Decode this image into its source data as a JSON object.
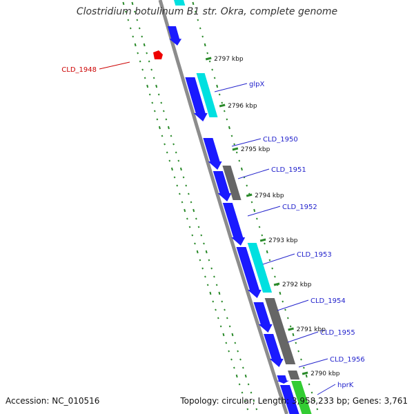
{
  "title": "Clostridium botulinum B1 str. Okra, complete genome",
  "accession": "Accession: NC_010516",
  "summary": "Topology: circular; Length: 3,958,233 bp; Genes: 3,761",
  "colors": {
    "forward_cds": "#1a1aff",
    "reverse_cds": "#00e0e0",
    "other_gene": "#666666",
    "rrna": "#33cc33",
    "highlight": "#ee0000",
    "backbone": "#8c8c8c",
    "tick": "#2a8a2a",
    "label": "#2222cc",
    "highlight_label": "#cc0000"
  },
  "scale_ticks": [
    "2797 kbp",
    "2796 kbp",
    "2795 kbp",
    "2794 kbp",
    "2793 kbp",
    "2792 kbp",
    "2791 kbp",
    "2790 kbp"
  ],
  "gene_labels": [
    {
      "name": "CLD_1948",
      "color": "highlight_label"
    },
    {
      "name": "glpX",
      "color": "label"
    },
    {
      "name": "CLD_1950",
      "color": "label"
    },
    {
      "name": "CLD_1951",
      "color": "label"
    },
    {
      "name": "CLD_1952",
      "color": "label"
    },
    {
      "name": "CLD_1953",
      "color": "label"
    },
    {
      "name": "CLD_1954",
      "color": "label"
    },
    {
      "name": "CLD_1955",
      "color": "label"
    },
    {
      "name": "CLD_1956",
      "color": "label"
    },
    {
      "name": "hprK",
      "color": "label"
    }
  ]
}
